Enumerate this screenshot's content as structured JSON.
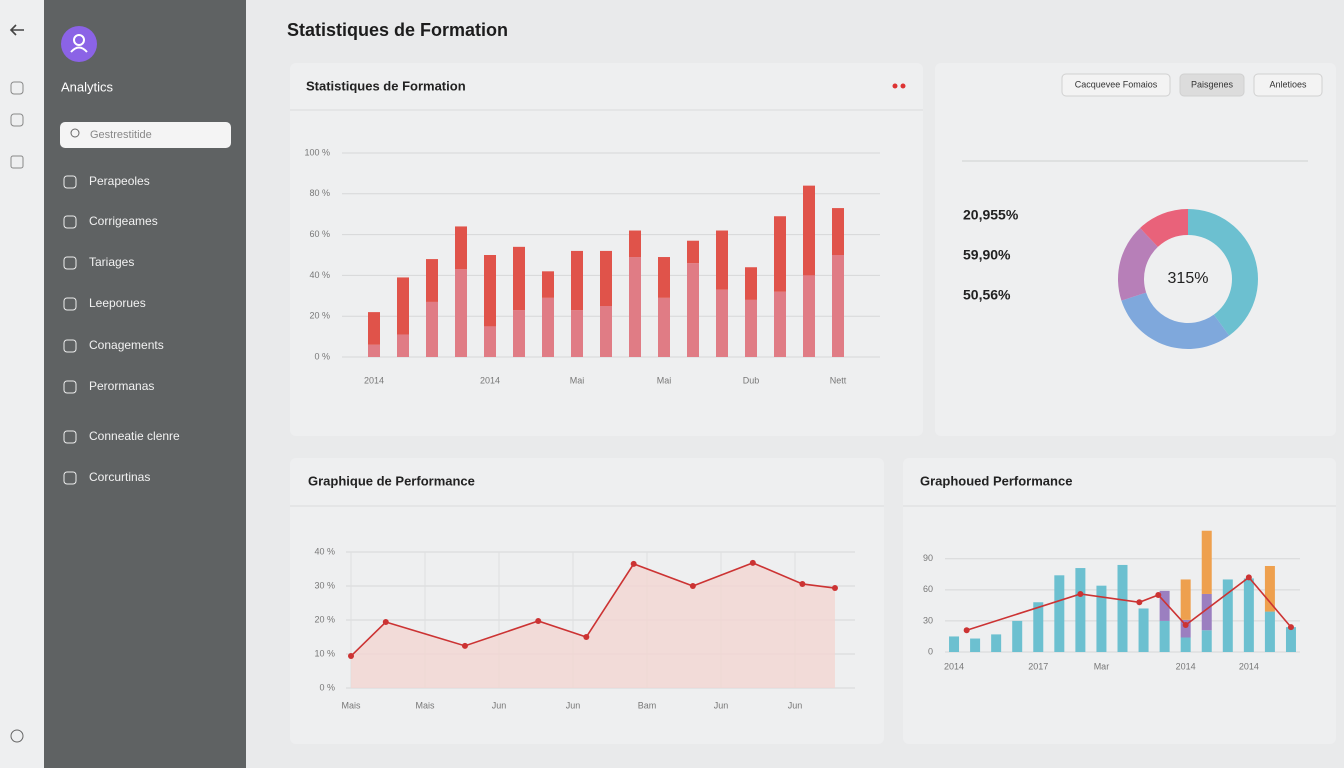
{
  "sidebar": {
    "brand": "Analytics",
    "search": "Gestrestitide",
    "nav": [
      "Perapeoles",
      "Corrigeames",
      "Tariages",
      "Leeporues",
      "Conagements",
      "Perormanas",
      "Conneatie clenre",
      "Corcurtinas"
    ]
  },
  "header": {
    "title": "Statistiques de Formation"
  },
  "chart_data": [
    {
      "type": "bar",
      "stacked": true,
      "title": "Statistiques de Formation",
      "categories": [
        "2014",
        null,
        null,
        null,
        "2014",
        null,
        null,
        "Mai",
        null,
        null,
        "Mai",
        null,
        null,
        "Dub",
        null,
        null,
        "Nett"
      ],
      "series": [
        {
          "color": "#e07c85",
          "values": [
            6,
            11,
            27,
            43,
            15,
            23,
            29,
            23,
            25,
            49,
            29,
            46,
            33,
            28,
            32,
            40,
            50
          ]
        },
        {
          "color": "#e0534a",
          "values": [
            16,
            28,
            21,
            21,
            35,
            31,
            13,
            29,
            27,
            13,
            20,
            11,
            29,
            16,
            37,
            44,
            23
          ]
        }
      ],
      "ylim": [
        0,
        100
      ],
      "yticks": [
        {
          "value": 0,
          "label": "0 %"
        },
        {
          "value": 20,
          "label": "20 %"
        },
        {
          "value": 40,
          "label": "40 %"
        },
        {
          "value": 60,
          "label": "60 %"
        },
        {
          "value": 80,
          "label": "80 %"
        },
        {
          "value": 100,
          "label": "100 %"
        }
      ],
      "grid": true
    },
    {
      "type": "pie",
      "donut": true,
      "values": [
        40,
        30,
        18,
        12
      ],
      "colors": [
        "#6cc0d0",
        "#7fa8dc",
        "#b77fb8",
        "#e9627a"
      ],
      "center_label": "315%",
      "stats": [
        "20,955%",
        "59,90%",
        "50,56%"
      ],
      "filters": [
        "Cacquevee Fomaios",
        "Paisgenes",
        "Anletioes"
      ]
    },
    {
      "type": "area",
      "title": "Graphique de Performance",
      "x": [
        0,
        0.47,
        1.54,
        2.53,
        3.18,
        3.82,
        4.62,
        5.43,
        6.1,
        6.54
      ],
      "values": [
        9.4,
        19.4,
        12.4,
        19.7,
        15,
        36.5,
        30,
        36.8,
        30.6,
        29.4
      ],
      "color": "#cc3333",
      "fill": "#f3d6d2",
      "xlim": [
        0,
        6.8
      ],
      "xticks": [
        {
          "value": 0,
          "label": "Mais"
        },
        {
          "value": 1,
          "label": "Mais"
        },
        {
          "value": 2,
          "label": "Jun"
        },
        {
          "value": 3,
          "label": "Jun"
        },
        {
          "value": 4,
          "label": "Bam"
        },
        {
          "value": 5,
          "label": "Jun"
        },
        {
          "value": 6,
          "label": "Jun"
        }
      ],
      "ylim": [
        0,
        40
      ],
      "yticks": [
        {
          "value": 0,
          "label": "0 %"
        },
        {
          "value": 10,
          "label": "10 %"
        },
        {
          "value": 20,
          "label": "20 %"
        },
        {
          "value": 30,
          "label": "30 %"
        },
        {
          "value": 40,
          "label": "40 %"
        }
      ],
      "grid": true
    },
    {
      "type": "bar",
      "stacked": true,
      "title": "Graphoued Performance",
      "categories": [
        "2014",
        null,
        null,
        null,
        "2017",
        null,
        null,
        "Mar",
        null,
        null,
        null,
        "2014",
        null,
        null,
        "2014",
        null,
        null
      ],
      "series": [
        {
          "color": "#6cc0d0",
          "values": [
            15,
            13,
            17,
            30,
            48,
            74,
            81,
            64,
            84,
            42,
            30,
            14,
            21,
            70,
            71,
            39,
            24
          ]
        },
        {
          "color": "#9b7fc0",
          "values": [
            null,
            null,
            null,
            null,
            null,
            null,
            null,
            null,
            null,
            null,
            29,
            17,
            35,
            null,
            null,
            null,
            null
          ]
        },
        {
          "color": "#eea04e",
          "values": [
            null,
            null,
            null,
            null,
            null,
            null,
            null,
            null,
            null,
            null,
            null,
            39,
            61,
            null,
            null,
            44,
            null
          ]
        },
        {
          "type": "line",
          "color": "#cc3333",
          "x": [
            0.6,
            6,
            8.8,
            9.7,
            11,
            14,
            16
          ],
          "values": [
            21,
            56,
            48,
            55,
            26,
            72,
            24
          ]
        }
      ],
      "ylim": [
        0,
        110
      ],
      "yticks": [
        0,
        30,
        60,
        90
      ],
      "grid": true
    }
  ]
}
